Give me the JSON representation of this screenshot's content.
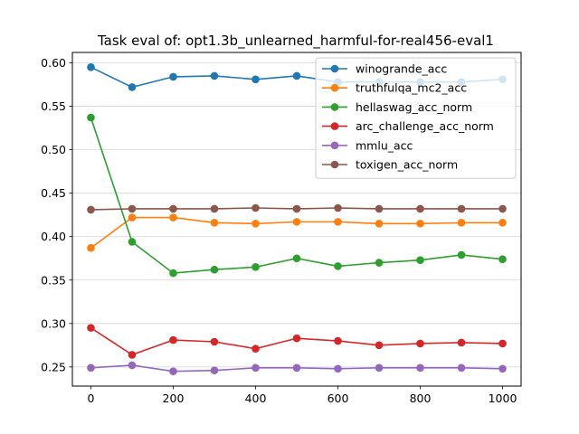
{
  "chart_data": {
    "type": "line",
    "title": "Task eval of: opt1.3b_unlearned_harmful-for-real456-eval1",
    "xlabel": "",
    "ylabel": "",
    "x": [
      0,
      100,
      200,
      300,
      400,
      500,
      600,
      700,
      800,
      900,
      1000
    ],
    "xlim": [
      -45,
      1045
    ],
    "ylim": [
      0.228,
      0.612
    ],
    "xticks": [
      0,
      200,
      400,
      600,
      800,
      1000
    ],
    "yticks": [
      0.25,
      0.3,
      0.35,
      0.4,
      0.45,
      0.5,
      0.55,
      0.6
    ],
    "grid": "horizontal",
    "legend": "top-right",
    "series": [
      {
        "name": "winogrande_acc",
        "color": "#1f77b4",
        "values": [
          0.595,
          0.572,
          0.584,
          0.585,
          0.581,
          0.585,
          0.578,
          0.578,
          0.578,
          0.578,
          0.581
        ]
      },
      {
        "name": "truthfulqa_mc2_acc",
        "color": "#ff7f0e",
        "values": [
          0.387,
          0.422,
          0.422,
          0.416,
          0.415,
          0.417,
          0.417,
          0.415,
          0.415,
          0.416,
          0.416
        ]
      },
      {
        "name": "hellaswag_acc_norm",
        "color": "#2ca02c",
        "values": [
          0.537,
          0.394,
          0.358,
          0.362,
          0.365,
          0.375,
          0.366,
          0.37,
          0.373,
          0.379,
          0.374
        ]
      },
      {
        "name": "arc_challenge_acc_norm",
        "color": "#d62728",
        "values": [
          0.295,
          0.264,
          0.281,
          0.279,
          0.271,
          0.283,
          0.28,
          0.275,
          0.277,
          0.278,
          0.277
        ]
      },
      {
        "name": "mmlu_acc",
        "color": "#9467bd",
        "values": [
          0.249,
          0.252,
          0.245,
          0.246,
          0.249,
          0.249,
          0.248,
          0.249,
          0.249,
          0.249,
          0.248
        ]
      },
      {
        "name": "toxigen_acc_norm",
        "color": "#8c564b",
        "values": [
          0.431,
          0.432,
          0.432,
          0.432,
          0.433,
          0.432,
          0.433,
          0.432,
          0.432,
          0.432,
          0.432
        ]
      }
    ]
  }
}
